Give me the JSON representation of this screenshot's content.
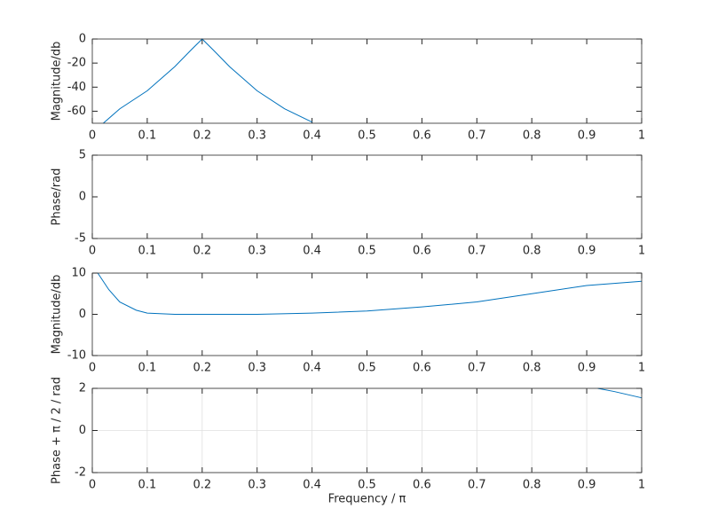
{
  "chart_data": [
    {
      "type": "line",
      "y_label": "Magnitude/db",
      "xlim": [
        0,
        1
      ],
      "ylim": [
        -70,
        0
      ],
      "xticks": [
        0,
        0.1,
        0.2,
        0.3,
        0.4,
        0.5,
        0.6,
        0.7,
        0.8,
        0.9,
        1
      ],
      "yticks": [
        -60,
        -40,
        -20,
        0
      ],
      "grid": false,
      "x": [
        0.02,
        0.05,
        0.1,
        0.15,
        0.18,
        0.2,
        0.22,
        0.25,
        0.3,
        0.35,
        0.4
      ],
      "series": [
        {
          "color": "#0072bd",
          "values": [
            -70,
            -58,
            -43,
            -23,
            -9,
            0,
            -9,
            -23,
            -43,
            -58,
            -69
          ]
        }
      ]
    },
    {
      "type": "line",
      "y_label": "Phase/rad",
      "xlim": [
        0,
        1
      ],
      "ylim": [
        -5,
        5
      ],
      "xticks": [
        0,
        0.1,
        0.2,
        0.3,
        0.4,
        0.5,
        0.6,
        0.7,
        0.8,
        0.9,
        1
      ],
      "yticks": [
        -5,
        0,
        5
      ],
      "grid": false
    },
    {
      "type": "line",
      "y_label": "Magnitude/db",
      "xlim": [
        0,
        1
      ],
      "ylim": [
        -10,
        10
      ],
      "xticks": [
        0,
        0.1,
        0.2,
        0.3,
        0.4,
        0.5,
        0.6,
        0.7,
        0.8,
        0.9,
        1
      ],
      "yticks": [
        -10,
        0,
        10
      ],
      "grid": false,
      "x": [
        0.01,
        0.03,
        0.05,
        0.08,
        0.1,
        0.15,
        0.3,
        0.4,
        0.5,
        0.6,
        0.7,
        0.8,
        0.9,
        1
      ],
      "series": [
        {
          "color": "#0072bd",
          "values": [
            10,
            6,
            3,
            1,
            0.3,
            0,
            0,
            0.3,
            0.8,
            1.8,
            3,
            5,
            7,
            8
          ]
        }
      ]
    },
    {
      "type": "line",
      "y_label": "Phase + π / 2 / rad",
      "x_label": "Frequency / π",
      "xlim": [
        0,
        1
      ],
      "ylim": [
        -2,
        2
      ],
      "xticks": [
        0,
        0.1,
        0.2,
        0.3,
        0.4,
        0.5,
        0.6,
        0.7,
        0.8,
        0.9,
        1
      ],
      "yticks": [
        -2,
        0,
        2
      ],
      "grid": true,
      "x": [
        0.92,
        0.95,
        1
      ],
      "series": [
        {
          "color": "#0072bd",
          "values": [
            2,
            1.85,
            1.55
          ]
        }
      ]
    }
  ]
}
